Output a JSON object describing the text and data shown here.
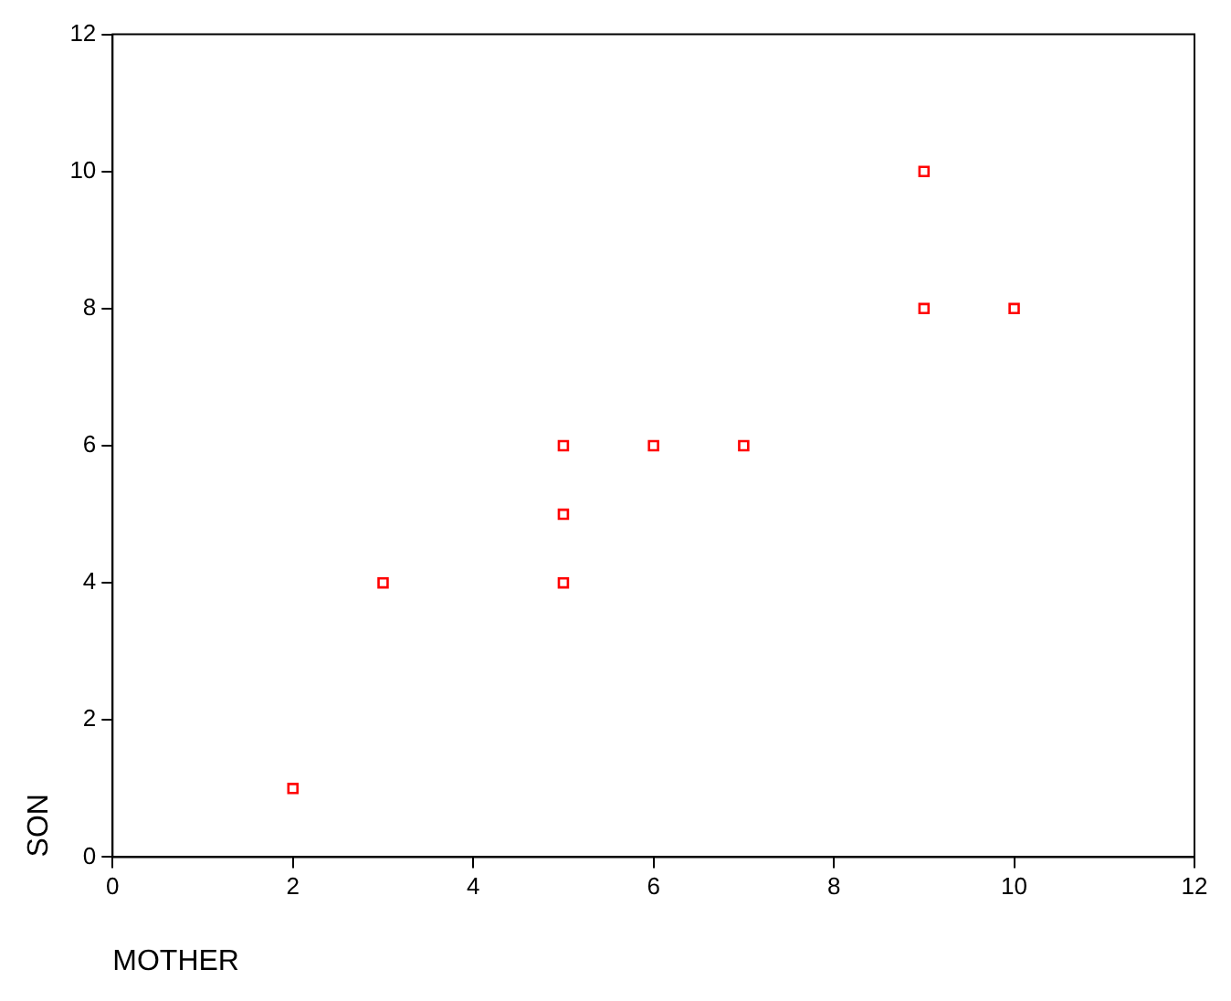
{
  "chart_data": {
    "type": "scatter",
    "xlabel": "MOTHER",
    "ylabel": "SON",
    "x": [
      2,
      3,
      5,
      5,
      5,
      6,
      7,
      9,
      9,
      10
    ],
    "values": [
      1,
      4,
      6,
      5,
      4,
      6,
      6,
      10,
      8,
      8
    ],
    "color": "#ff0000",
    "marker": "square",
    "grid": false,
    "legend": false,
    "xlim": [
      0,
      12
    ],
    "xticks": [
      0,
      2,
      4,
      6,
      8,
      10,
      12
    ],
    "ylim": [
      0,
      12
    ],
    "yticks": [
      0,
      2,
      4,
      6,
      8,
      10,
      12
    ]
  }
}
